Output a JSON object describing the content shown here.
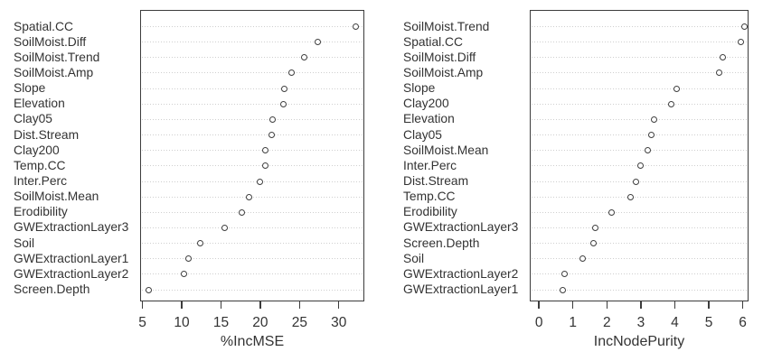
{
  "colors": {
    "background": "#ffffff",
    "box_border": "#3c3c3c",
    "gridline": "#cfcfcf",
    "marker_stroke": "#3f3f3f",
    "marker_fill": "#ffffff",
    "text": "#333333"
  },
  "chart_data": [
    {
      "type": "scatter",
      "variant": "dotchart",
      "title": "",
      "xlabel": "%IncMSE",
      "ylabel": "",
      "xlim": [
        4.7,
        33.25
      ],
      "xticks": [
        5,
        10,
        15,
        20,
        25,
        30
      ],
      "grid": "horizontal-dotted",
      "legend": "none",
      "marker": "open-circle",
      "categories": [
        "Spatial.CC",
        "SoilMoist.Diff",
        "SoilMoist.Trend",
        "SoilMoist.Amp",
        "Slope",
        "Elevation",
        "Clay05",
        "Dist.Stream",
        "Clay200",
        "Temp.CC",
        "Inter.Perc",
        "SoilMoist.Mean",
        "Erodibility",
        "GWExtractionLayer3",
        "Soil",
        "GWExtractionLayer1",
        "GWExtractionLayer2",
        "Screen.Depth"
      ],
      "values": [
        32.2,
        27.3,
        25.6,
        24.0,
        23.1,
        22.9,
        21.6,
        21.5,
        20.7,
        20.6,
        20.0,
        18.6,
        17.6,
        15.5,
        12.3,
        10.9,
        10.3,
        5.8
      ]
    },
    {
      "type": "scatter",
      "variant": "dotchart",
      "title": "",
      "xlabel": "IncNodePurity",
      "ylabel": "",
      "xlim": [
        -0.27,
        6.17
      ],
      "xticks": [
        0,
        1,
        2,
        3,
        4,
        5,
        6
      ],
      "grid": "horizontal-dotted",
      "legend": "none",
      "marker": "open-circle",
      "categories": [
        "SoilMoist.Trend",
        "Spatial.CC",
        "SoilMoist.Diff",
        "SoilMoist.Amp",
        "Slope",
        "Clay200",
        "Elevation",
        "Clay05",
        "SoilMoist.Mean",
        "Inter.Perc",
        "Dist.Stream",
        "Temp.CC",
        "Erodibility",
        "GWExtractionLayer3",
        "Screen.Depth",
        "Soil",
        "GWExtractionLayer2",
        "GWExtractionLayer1"
      ],
      "values": [
        6.05,
        5.95,
        5.4,
        5.3,
        4.05,
        3.9,
        3.4,
        3.3,
        3.2,
        3.0,
        2.85,
        2.7,
        2.15,
        1.65,
        1.6,
        1.3,
        0.75,
        0.7
      ]
    }
  ]
}
